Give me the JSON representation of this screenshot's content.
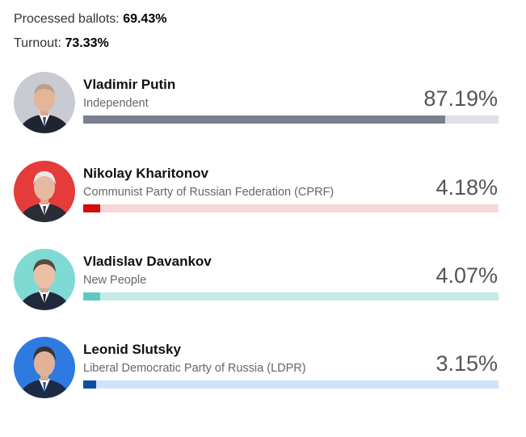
{
  "summary": {
    "processed_label": "Processed ballots:",
    "processed_value": "69.43%",
    "turnout_label": "Turnout:",
    "turnout_value": "73.33%"
  },
  "candidates": [
    {
      "name": "Vladimir Putin",
      "party": "Independent",
      "percent_text": "87.19%",
      "percent": 87.19,
      "fill_color": "#7b7f8f",
      "track_color": "#dfe1e6",
      "avatar_bg": "#c8cbd2"
    },
    {
      "name": "Nikolay Kharitonov",
      "party": "Communist Party of Russian Federation (CPRF)",
      "percent_text": "4.18%",
      "percent": 4.18,
      "fill_color": "#d40d0d",
      "track_color": "#fad6d6",
      "avatar_bg": "#e53b3b"
    },
    {
      "name": "Vladislav Davankov",
      "party": "New People",
      "percent_text": "4.07%",
      "percent": 4.07,
      "fill_color": "#5fc9c1",
      "track_color": "#c4ebe8",
      "avatar_bg": "#7fdad3"
    },
    {
      "name": "Leonid Slutsky",
      "party": "Liberal Democratic Party of Russia (LDPR)",
      "percent_text": "3.15%",
      "percent": 3.15,
      "fill_color": "#0b4ea2",
      "track_color": "#cfe3fb",
      "avatar_bg": "#2e7ae0"
    }
  ]
}
